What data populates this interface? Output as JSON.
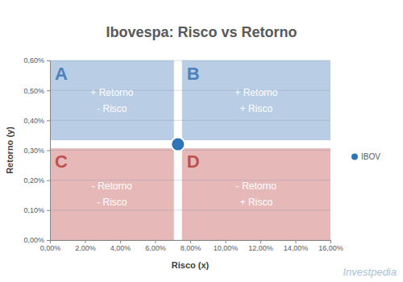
{
  "chart_data": {
    "type": "scatter",
    "title": "Ibovespa: Risco vs Retorno",
    "x_label": "Risco (x)",
    "y_label": "Retorno (y)",
    "series": [
      {
        "name": "IBOV",
        "color": "#2e75b6",
        "marker": "circle",
        "x": [
          7.3
        ],
        "values": [
          0.32
        ]
      }
    ],
    "xlim": [
      0,
      16
    ],
    "xticks": [
      {
        "value": 0,
        "label": "0,00%"
      },
      {
        "value": 2,
        "label": "2,00%"
      },
      {
        "value": 4,
        "label": "4,00%"
      },
      {
        "value": 6,
        "label": "6,00%"
      },
      {
        "value": 8,
        "label": "8,00%"
      },
      {
        "value": 10,
        "label": "10,00%"
      },
      {
        "value": 12,
        "label": "12,00%"
      },
      {
        "value": 14,
        "label": "14,00%"
      },
      {
        "value": 16,
        "label": "16,00%"
      }
    ],
    "ylim": [
      0,
      0.6
    ],
    "yticks": [
      {
        "value": 0,
        "label": "0,00%"
      },
      {
        "value": 0.1,
        "label": "0,10%"
      },
      {
        "value": 0.2,
        "label": "0,20%"
      },
      {
        "value": 0.3,
        "label": "0,30%"
      },
      {
        "value": 0.4,
        "label": "0,40%"
      },
      {
        "value": 0.5,
        "label": "0,50%"
      },
      {
        "value": 0.6,
        "label": "0,60%"
      }
    ],
    "grid": true,
    "legend": "right",
    "quadrants": [
      {
        "letter": "A",
        "lines": [
          "+ Retorno",
          "- Risco"
        ]
      },
      {
        "letter": "B",
        "lines": [
          "+ Retorno",
          "+ Risco"
        ]
      },
      {
        "letter": "C",
        "lines": [
          "- Retorno",
          "- Risco"
        ]
      },
      {
        "letter": "D",
        "lines": [
          "- Retorno",
          "+ Risco"
        ]
      }
    ],
    "source": "Investpedia"
  }
}
